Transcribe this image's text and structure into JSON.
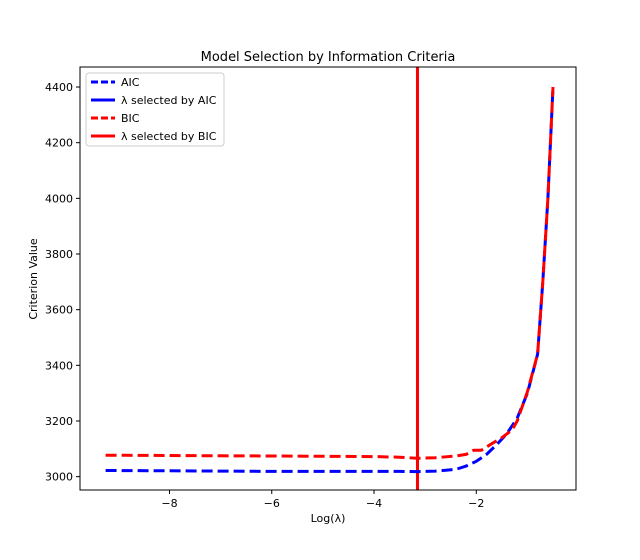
{
  "chart_data": {
    "type": "line",
    "title": "Model Selection by Information Criteria",
    "xlabel": "Log(λ)",
    "ylabel": "Criterion Value",
    "xlim": [
      -9.75,
      -0.05
    ],
    "ylim": [
      2952,
      4472
    ],
    "x_ticks": [
      -8,
      -6,
      -4,
      -2
    ],
    "x_tick_labels": [
      "−8",
      "−6",
      "−4",
      "−2"
    ],
    "y_ticks": [
      3000,
      3200,
      3400,
      3600,
      3800,
      4000,
      4200,
      4400
    ],
    "y_tick_labels": [
      "3000",
      "3200",
      "3400",
      "3600",
      "3800",
      "4000",
      "4200",
      "4400"
    ],
    "grid": false,
    "legend_position": "top-left",
    "series": [
      {
        "name": "AIC",
        "color": "#0000ff",
        "dash": "dashed",
        "x": [
          -9.25,
          -8.0,
          -7.0,
          -6.0,
          -5.0,
          -4.0,
          -3.5,
          -3.15,
          -2.8,
          -2.4,
          -2.2,
          -2.0,
          -1.8,
          -1.6,
          -1.4,
          -1.2,
          -1.0,
          -0.8,
          -0.7,
          -0.6,
          -0.5
        ],
        "y": [
          3022,
          3021,
          3020,
          3019,
          3019,
          3019,
          3019,
          3018,
          3020,
          3026,
          3038,
          3055,
          3080,
          3115,
          3155,
          3210,
          3300,
          3440,
          3700,
          4000,
          4400
        ]
      },
      {
        "name": "BIC",
        "color": "#ff0000",
        "dash": "dashed",
        "x": [
          -9.25,
          -8.0,
          -7.0,
          -6.0,
          -5.0,
          -4.0,
          -3.5,
          -3.15,
          -2.8,
          -2.4,
          -2.2,
          -2.05,
          -1.9,
          -1.7,
          -1.5,
          -1.3,
          -1.2,
          -1.0,
          -0.8,
          -0.7,
          -0.6,
          -0.5
        ],
        "y": [
          3077,
          3076,
          3075,
          3074,
          3073,
          3072,
          3070,
          3066,
          3068,
          3074,
          3080,
          3095,
          3095,
          3118,
          3140,
          3168,
          3200,
          3305,
          3440,
          3700,
          4000,
          4400
        ]
      }
    ],
    "vlines": [
      {
        "name": "λ selected by AIC",
        "x": -3.15,
        "color": "#0000ff"
      },
      {
        "name": "λ selected by BIC",
        "x": -3.15,
        "color": "#ff0000"
      }
    ],
    "legend": [
      {
        "label": "AIC",
        "color": "#0000ff",
        "style": "dashed"
      },
      {
        "label": "λ selected by AIC",
        "color": "#0000ff",
        "style": "solid"
      },
      {
        "label": "BIC",
        "color": "#ff0000",
        "style": "dashed"
      },
      {
        "label": "λ selected by BIC",
        "color": "#ff0000",
        "style": "solid"
      }
    ]
  }
}
